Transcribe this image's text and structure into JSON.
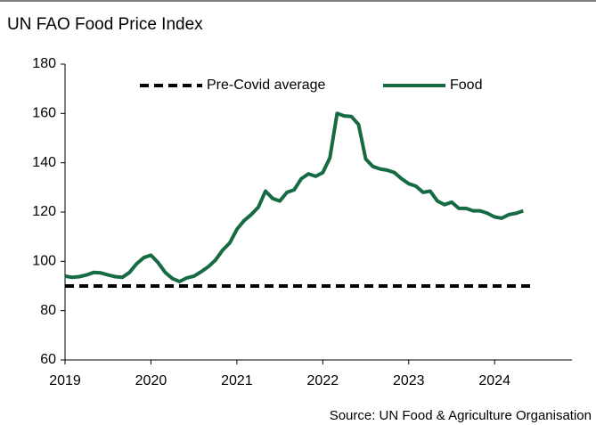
{
  "chart_data": {
    "type": "line",
    "title": "UN FAO Food Price Index",
    "source": "Source: UN Food & Agriculture Organisation",
    "xlim": [
      2019,
      2024.9
    ],
    "xticks": [
      2019,
      2020,
      2021,
      2022,
      2023,
      2024
    ],
    "ylim": [
      60,
      180
    ],
    "yticks": [
      60,
      80,
      100,
      120,
      140,
      160,
      180
    ],
    "grid": false,
    "legend": "top",
    "series": [
      {
        "name": "Pre-Covid average",
        "color": "#000000",
        "dashed": true,
        "x": [
          2019,
          2024.42
        ],
        "values": [
          90,
          90
        ]
      },
      {
        "name": "Food",
        "color": "#166b43",
        "dashed": false,
        "x": [
          2019.0,
          2019.083,
          2019.167,
          2019.25,
          2019.333,
          2019.417,
          2019.5,
          2019.583,
          2019.667,
          2019.75,
          2019.833,
          2019.917,
          2020.0,
          2020.083,
          2020.167,
          2020.25,
          2020.333,
          2020.417,
          2020.5,
          2020.583,
          2020.667,
          2020.75,
          2020.833,
          2020.917,
          2021.0,
          2021.083,
          2021.167,
          2021.25,
          2021.333,
          2021.417,
          2021.5,
          2021.583,
          2021.667,
          2021.75,
          2021.833,
          2021.917,
          2022.0,
          2022.083,
          2022.167,
          2022.25,
          2022.333,
          2022.417,
          2022.5,
          2022.583,
          2022.667,
          2022.75,
          2022.833,
          2022.917,
          2023.0,
          2023.083,
          2023.167,
          2023.25,
          2023.333,
          2023.417,
          2023.5,
          2023.583,
          2023.667,
          2023.75,
          2023.833,
          2023.917,
          2024.0,
          2024.083,
          2024.167,
          2024.25,
          2024.333
        ],
        "values": [
          94,
          93.5,
          93.8,
          94.5,
          95.5,
          95.3,
          94.5,
          93.8,
          93.5,
          95.5,
          99,
          101.5,
          102.5,
          99.5,
          95.5,
          93,
          91.8,
          93.3,
          94,
          95.8,
          97.8,
          100.5,
          104.5,
          107.5,
          113,
          116.5,
          119,
          122,
          128.5,
          125.5,
          124.5,
          128,
          129,
          133.5,
          135.5,
          134.5,
          136,
          142,
          160,
          159,
          158.8,
          155.5,
          141.5,
          138.5,
          137.5,
          137,
          136,
          133.5,
          131.5,
          130.5,
          128,
          128.5,
          124.5,
          123,
          124,
          121.5,
          121.5,
          120.5,
          120.5,
          119.5,
          118,
          117.5,
          119,
          119.5,
          120.5
        ]
      }
    ]
  }
}
